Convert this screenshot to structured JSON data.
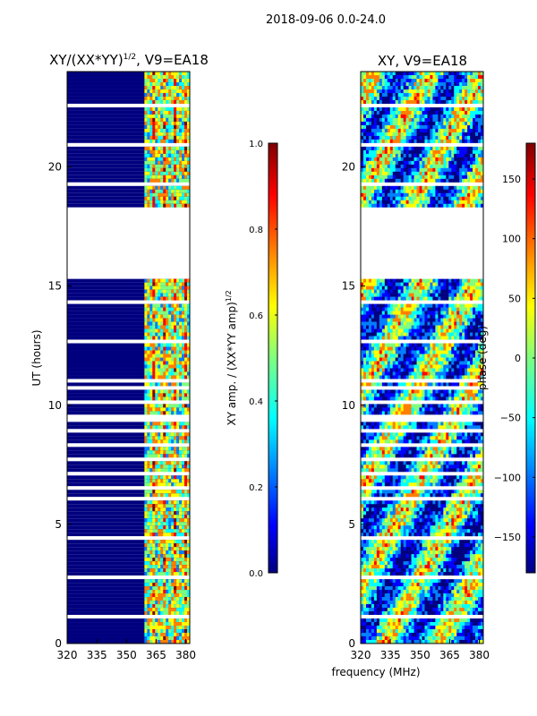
{
  "figure_title": "2018-09-06 0.0-24.0",
  "xlabel": "frequency (MHz)",
  "ylabel": "UT (hours)",
  "chart_data": [
    {
      "type": "heatmap",
      "title_prefix": "XY/(XX*YY)",
      "title_exponent": "1/2",
      "title_suffix": ", V9=EA18",
      "xlim": [
        320,
        382
      ],
      "ylim": [
        0,
        24
      ],
      "xticks": [
        "320",
        "335",
        "350",
        "365",
        "380"
      ],
      "yticks": [
        "0",
        "5",
        "10",
        "15",
        "20"
      ],
      "colorbar": {
        "label_prefix": "XY amp. / (XX*YY amp)",
        "label_exponent": "1/2",
        "range": [
          0.0,
          1.0
        ],
        "ticks": [
          "0.0",
          "0.2",
          "0.4",
          "0.6",
          "0.8",
          "1.0"
        ]
      }
    },
    {
      "type": "heatmap",
      "title": "XY, V9=EA18",
      "xlim": [
        320,
        382
      ],
      "ylim": [
        0,
        24
      ],
      "xticks": [
        "320",
        "335",
        "350",
        "365",
        "380"
      ],
      "yticks": [
        "0",
        "5",
        "10",
        "15",
        "20"
      ],
      "colorbar": {
        "label": "phase (deg)",
        "range": [
          -180,
          180
        ],
        "ticks": [
          "−150",
          "−100",
          "−50",
          "0",
          "50",
          "100",
          "150"
        ]
      }
    }
  ],
  "colormap": [
    "#00007f",
    "#0000ff",
    "#007fff",
    "#00ffff",
    "#7fff7f",
    "#ffff00",
    "#ff7f00",
    "#ff0000",
    "#7f0000"
  ]
}
